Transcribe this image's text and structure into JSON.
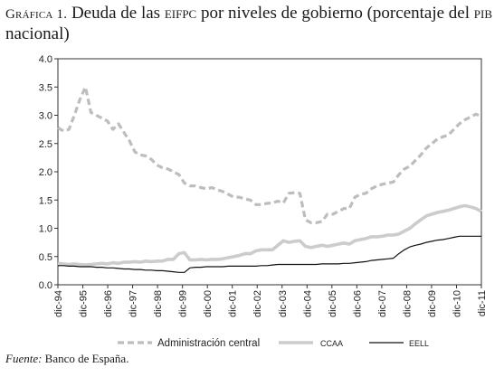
{
  "title": {
    "label": "Gráfica 1.",
    "text_part1": "Deuda de las ",
    "acronym1": "eifpc",
    "text_part2": " por niveles de gobierno (porcentaje del ",
    "acronym2": "pib",
    "text_part3": " nacional)"
  },
  "source": {
    "label": "Fuente:",
    "text": " Banco de España."
  },
  "chart_data": {
    "type": "line",
    "ylim": [
      0,
      4.0
    ],
    "yticks": [
      "0.0",
      "0.5",
      "1.0",
      "1.5",
      "2.0",
      "2.5",
      "3.0",
      "3.5",
      "4.0"
    ],
    "xticks": [
      "dic-94",
      "dic-95",
      "dic-96",
      "dic-97",
      "dic-98",
      "dic-99",
      "dic-00",
      "dic-01",
      "dic-02",
      "dic-03",
      "dic-04",
      "dic-05",
      "dic-06",
      "dic-07",
      "dic-08",
      "dic-09",
      "dic-10",
      "dic-11"
    ],
    "x_step": "quarter",
    "grid": false,
    "legend_position": "bottom",
    "series": [
      {
        "name": "Administración central",
        "color": "#bdbdbd",
        "style": "dashed",
        "values": [
          2.78,
          2.72,
          2.75,
          3.0,
          3.28,
          3.5,
          3.05,
          3.0,
          2.95,
          2.9,
          2.75,
          2.85,
          2.7,
          2.55,
          2.35,
          2.3,
          2.28,
          2.22,
          2.12,
          2.07,
          2.05,
          2.0,
          1.95,
          1.8,
          1.75,
          1.75,
          1.72,
          1.7,
          1.72,
          1.68,
          1.65,
          1.6,
          1.55,
          1.55,
          1.52,
          1.5,
          1.42,
          1.42,
          1.44,
          1.45,
          1.48,
          1.45,
          1.62,
          1.63,
          1.62,
          1.15,
          1.1,
          1.1,
          1.12,
          1.25,
          1.25,
          1.3,
          1.35,
          1.35,
          1.55,
          1.6,
          1.62,
          1.7,
          1.75,
          1.78,
          1.8,
          1.82,
          1.95,
          2.05,
          2.1,
          2.2,
          2.3,
          2.42,
          2.5,
          2.58,
          2.62,
          2.65,
          2.75,
          2.85,
          2.92,
          2.97,
          3.02,
          2.98
        ]
      },
      {
        "name": "CCAA",
        "color": "#cccccc",
        "style": "solid",
        "values": [
          0.38,
          0.37,
          0.36,
          0.37,
          0.36,
          0.35,
          0.36,
          0.37,
          0.38,
          0.37,
          0.39,
          0.38,
          0.4,
          0.4,
          0.41,
          0.4,
          0.42,
          0.41,
          0.42,
          0.42,
          0.45,
          0.45,
          0.55,
          0.57,
          0.44,
          0.44,
          0.45,
          0.44,
          0.45,
          0.45,
          0.46,
          0.48,
          0.5,
          0.52,
          0.55,
          0.55,
          0.6,
          0.62,
          0.62,
          0.62,
          0.7,
          0.78,
          0.75,
          0.77,
          0.78,
          0.68,
          0.66,
          0.68,
          0.7,
          0.68,
          0.7,
          0.72,
          0.74,
          0.72,
          0.78,
          0.8,
          0.82,
          0.85,
          0.85,
          0.86,
          0.88,
          0.88,
          0.9,
          0.95,
          1.0,
          1.08,
          1.15,
          1.22,
          1.25,
          1.28,
          1.3,
          1.32,
          1.35,
          1.38,
          1.4,
          1.38,
          1.35,
          1.3
        ]
      },
      {
        "name": "EELL",
        "color": "#111111",
        "style": "solid",
        "values": [
          0.34,
          0.34,
          0.33,
          0.33,
          0.32,
          0.32,
          0.32,
          0.31,
          0.31,
          0.3,
          0.3,
          0.29,
          0.28,
          0.28,
          0.27,
          0.27,
          0.26,
          0.26,
          0.25,
          0.25,
          0.24,
          0.23,
          0.22,
          0.22,
          0.3,
          0.31,
          0.31,
          0.32,
          0.32,
          0.32,
          0.32,
          0.33,
          0.33,
          0.33,
          0.33,
          0.33,
          0.33,
          0.34,
          0.34,
          0.35,
          0.36,
          0.36,
          0.36,
          0.36,
          0.36,
          0.36,
          0.36,
          0.36,
          0.37,
          0.37,
          0.37,
          0.37,
          0.38,
          0.38,
          0.39,
          0.4,
          0.41,
          0.43,
          0.44,
          0.45,
          0.46,
          0.47,
          0.55,
          0.62,
          0.67,
          0.7,
          0.72,
          0.75,
          0.77,
          0.79,
          0.8,
          0.82,
          0.84,
          0.86,
          0.86,
          0.86,
          0.86,
          0.86
        ]
      }
    ]
  }
}
